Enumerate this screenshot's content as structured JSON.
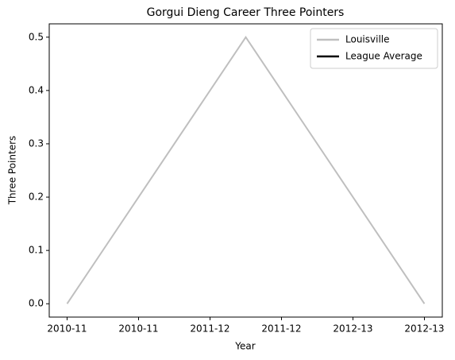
{
  "chart_data": {
    "type": "line",
    "title": "Gorgui Dieng Career Three Pointers",
    "x_label": "Year",
    "y_label": "Three Pointers",
    "x": [
      0,
      1,
      2
    ],
    "series": [
      {
        "name": "Louisville",
        "color": "#bfbfbf",
        "values": [
          0,
          0.5,
          0
        ]
      },
      {
        "name": "League Average",
        "color": "#000000",
        "values": [
          null,
          null,
          null
        ]
      }
    ],
    "xlim": [
      -0.1,
      2.1
    ],
    "xticks": [
      {
        "value": 0,
        "label": "2010-11"
      },
      {
        "value": 0.4,
        "label": "2010-11"
      },
      {
        "value": 0.8,
        "label": "2011-12"
      },
      {
        "value": 1.2,
        "label": "2011-12"
      },
      {
        "value": 1.6,
        "label": "2012-13"
      },
      {
        "value": 2.0,
        "label": "2012-13"
      }
    ],
    "ylim": [
      -0.025,
      0.525
    ],
    "yticks": [
      {
        "value": 0,
        "label": "0.0"
      },
      0.1,
      0.2,
      0.3,
      0.4,
      0.5
    ],
    "grid": false,
    "legend": "upper right"
  }
}
